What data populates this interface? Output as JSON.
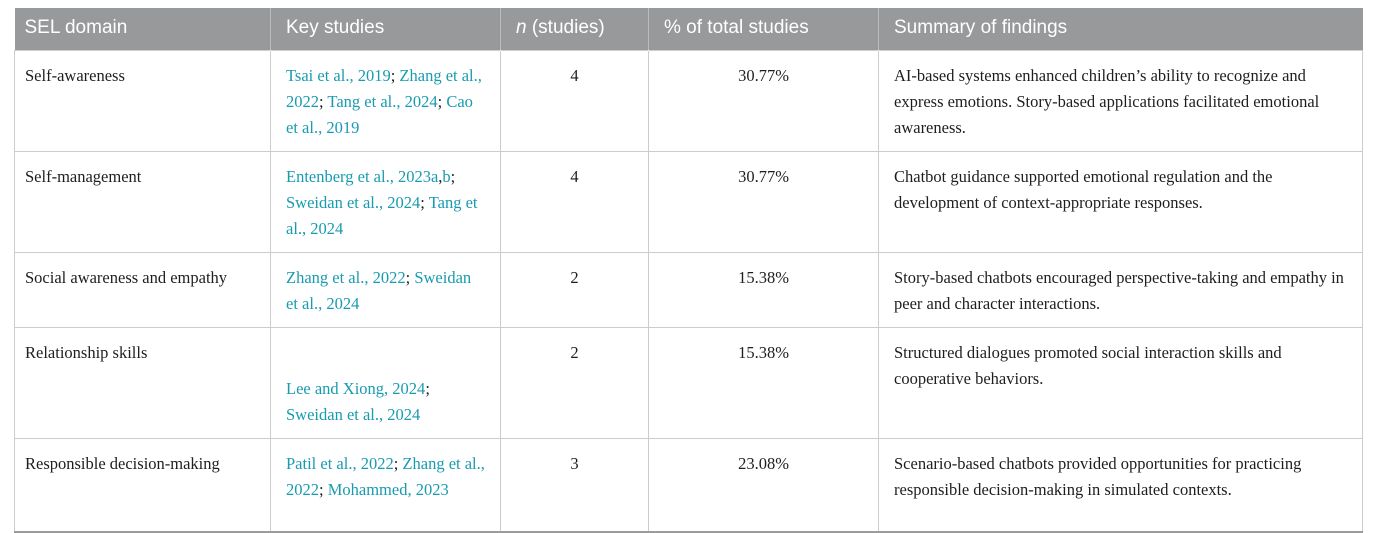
{
  "table": {
    "colors": {
      "header_bg": "#97999b",
      "link": "#189bb0"
    },
    "headers": {
      "domain": "SEL domain",
      "key_studies": "Key studies",
      "n_italic": "n",
      "n_rest": " (studies)",
      "pct": "% of total studies",
      "summary": "Summary of findings"
    },
    "rows": [
      {
        "domain": "Self-awareness",
        "studies": [
          {
            "t": "Tsai et al., 2019",
            "link": true
          },
          {
            "t": "; ",
            "link": false
          },
          {
            "t": "Zhang et al., 2022",
            "link": true
          },
          {
            "t": "; ",
            "link": false
          },
          {
            "t": "Tang et al., 2024",
            "link": true
          },
          {
            "t": "; ",
            "link": false
          },
          {
            "t": "Cao et al., 2019",
            "link": true
          }
        ],
        "n": "4",
        "pct": "30.77%",
        "summary": "AI-based systems enhanced children’s ability to recognize and express emotions. Story-based applications facilitated emotional awareness."
      },
      {
        "domain": "Self-management",
        "studies": [
          {
            "t": "Entenberg et al., 2023a",
            "link": true
          },
          {
            "t": ",",
            "link": false
          },
          {
            "t": "b",
            "link": true
          },
          {
            "t": "; ",
            "link": false
          },
          {
            "t": "Sweidan et al., 2024",
            "link": true
          },
          {
            "t": "; ",
            "link": false
          },
          {
            "t": "Tang et al., 2024",
            "link": true
          }
        ],
        "n": "4",
        "pct": "30.77%",
        "summary": "Chatbot guidance supported emotional regulation and the development of context-appropriate responses."
      },
      {
        "domain": "Social awareness and empathy",
        "studies": [
          {
            "t": "Zhang et al., 2022",
            "link": true
          },
          {
            "t": "; ",
            "link": false
          },
          {
            "t": "Sweidan et al., 2024",
            "link": true
          }
        ],
        "n": "2",
        "pct": "15.38%",
        "summary": "Story-based chatbots encouraged perspective-taking and empathy in peer and character interactions."
      },
      {
        "domain": "Relationship skills",
        "studies": [
          {
            "t": "Lee and Xiong, 2024",
            "link": true
          },
          {
            "t": "; ",
            "link": false
          },
          {
            "t": "Sweidan et al., 2024",
            "link": true
          }
        ],
        "n": "2",
        "pct": "15.38%",
        "summary": "Structured dialogues promoted social interaction skills and cooperative behaviors."
      },
      {
        "domain": "Responsible decision-making",
        "studies": [
          {
            "t": "Patil et al., 2022",
            "link": true
          },
          {
            "t": "; ",
            "link": false
          },
          {
            "t": "Zhang et al., 2022",
            "link": true
          },
          {
            "t": "; ",
            "link": false
          },
          {
            "t": "Mohammed, 2023",
            "link": true
          }
        ],
        "n": "3",
        "pct": "23.08%",
        "summary": "Scenario-based chatbots provided opportunities for practicing responsible decision-making in simulated contexts."
      }
    ]
  }
}
